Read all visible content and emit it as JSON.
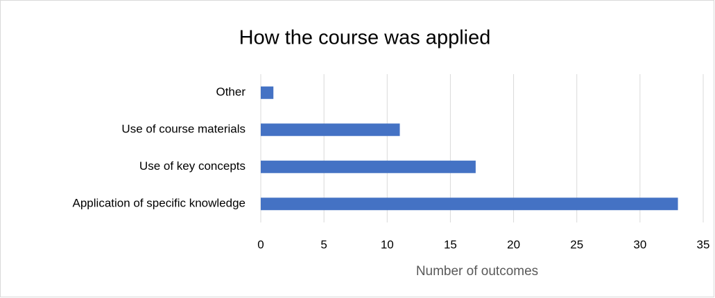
{
  "chart_data": {
    "type": "barh",
    "title": "How the course was applied",
    "categories": [
      "Other",
      "Use of course materials",
      "Use of key concepts",
      "Application of specific knowledge"
    ],
    "values": [
      1,
      11,
      17,
      33
    ],
    "color": "#4472c4",
    "xlabel": "Number of outcomes",
    "xlim": [
      0,
      35
    ],
    "xticks": [
      0,
      5,
      10,
      15,
      20,
      25,
      30,
      35
    ],
    "grid": true
  }
}
